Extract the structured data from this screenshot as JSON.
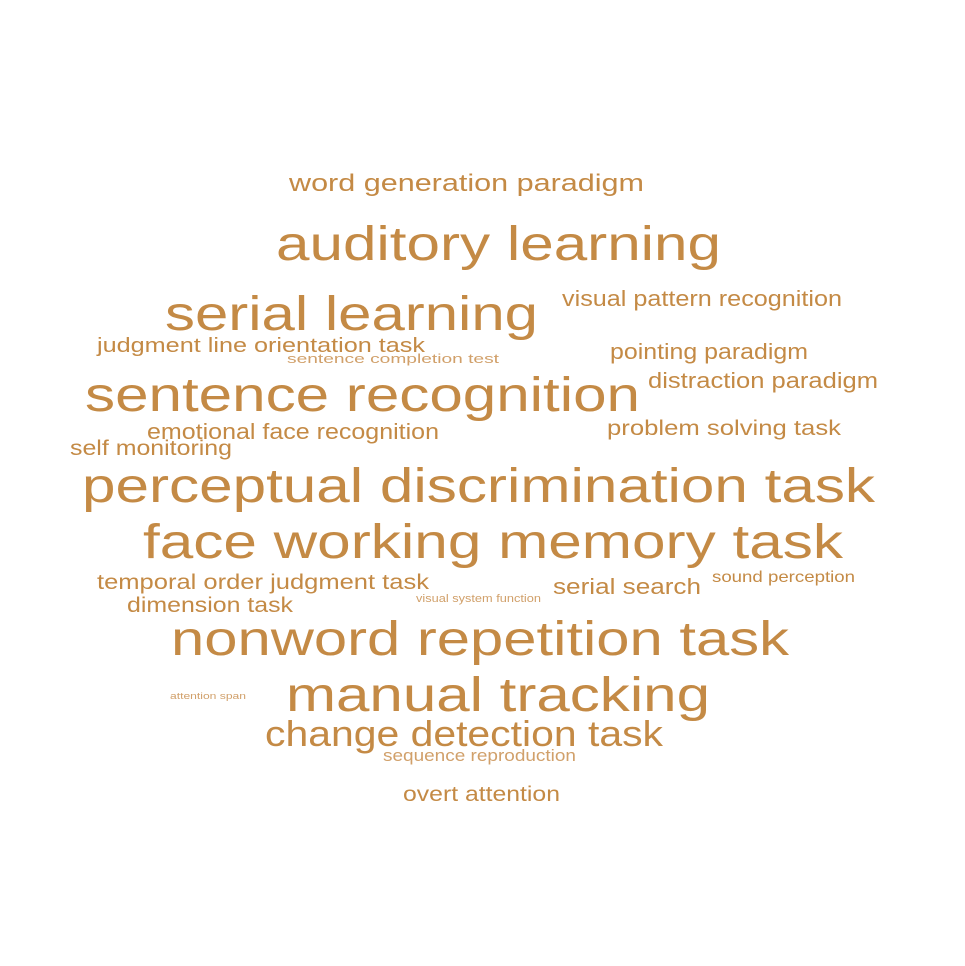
{
  "colors": {
    "word": "#c48a45",
    "word_faint": "#d1a06a",
    "background": "#ffffff"
  },
  "words": [
    "word generation paradigm",
    "auditory learning",
    "serial learning",
    "visual pattern recognition",
    "judgment line orientation task",
    "sentence completion test",
    "pointing paradigm",
    "distraction paradigm",
    "sentence recognition",
    "emotional face recognition",
    "problem solving task",
    "self monitoring",
    "perceptual discrimination task",
    "face working memory task",
    "temporal order judgment task",
    "sound perception",
    "serial search",
    "dimension task",
    "visual system function",
    "nonword repetition task",
    "attention span",
    "manual tracking",
    "change detection task",
    "sequence reproduction",
    "overt attention"
  ]
}
